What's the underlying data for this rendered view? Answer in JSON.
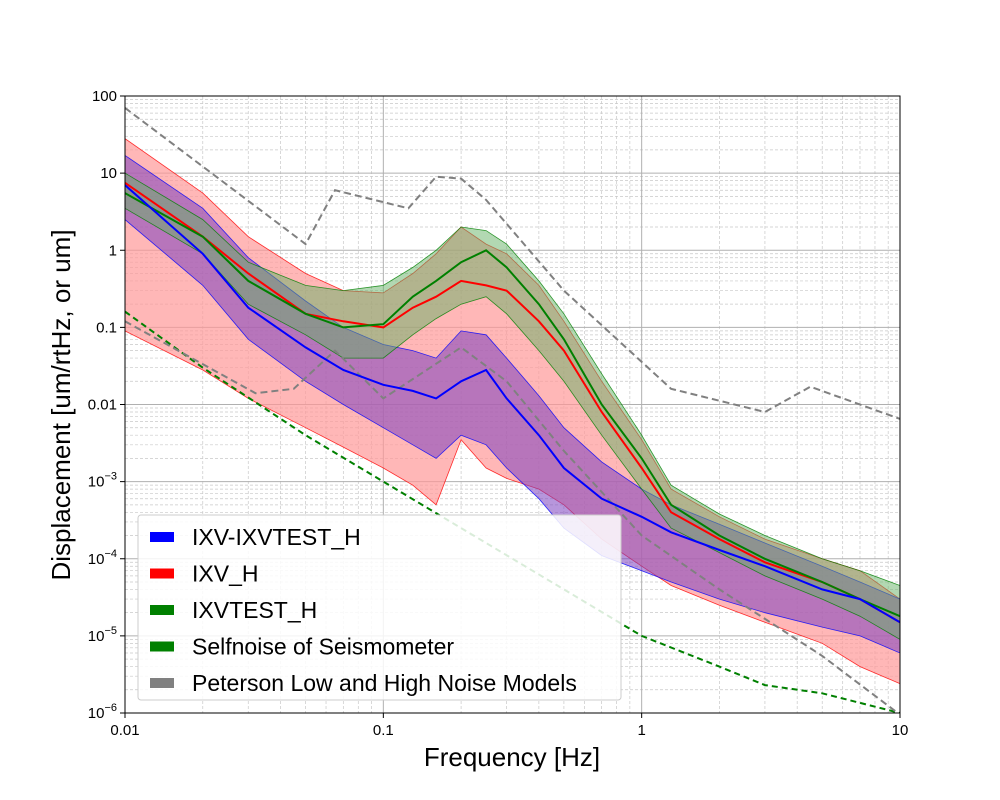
{
  "chart_data": {
    "type": "line",
    "xlabel": "Frequency [Hz]",
    "ylabel": "Displacement [um/rtHz, or um]",
    "x_scale": "log",
    "y_scale": "log",
    "xlim": [
      0.01,
      10
    ],
    "ylim": [
      1e-06,
      100
    ],
    "grid": "on (major and minor)",
    "legend_placement": "bottom-left",
    "x_ticks": [
      {
        "value": 0.01,
        "label": "0.01"
      },
      {
        "value": 0.1,
        "label": "0.1"
      },
      {
        "value": 1,
        "label": "1"
      },
      {
        "value": 10,
        "label": "10"
      }
    ],
    "y_ticks": [
      {
        "value": 100,
        "base": "100",
        "exp": ""
      },
      {
        "value": 10,
        "base": "10",
        "exp": ""
      },
      {
        "value": 1,
        "base": "1",
        "exp": ""
      },
      {
        "value": 0.1,
        "base": "0.1",
        "exp": ""
      },
      {
        "value": 0.01,
        "base": "0.01",
        "exp": ""
      },
      {
        "value": 0.001,
        "base": "10",
        "exp": "−3"
      },
      {
        "value": 0.0001,
        "base": "10",
        "exp": "−4"
      },
      {
        "value": 1e-05,
        "base": "10",
        "exp": "−5"
      },
      {
        "value": 1e-06,
        "base": "10",
        "exp": "−6"
      }
    ],
    "series": [
      {
        "name": "IXV_H",
        "color": "#ff0000",
        "band_color": "#ff9999",
        "x": [
          0.01,
          0.02,
          0.03,
          0.05,
          0.07,
          0.1,
          0.13,
          0.16,
          0.2,
          0.25,
          0.3,
          0.4,
          0.5,
          0.7,
          1.0,
          1.3,
          2.0,
          3.0,
          5.0,
          7.0,
          10.0
        ],
        "median": [
          7.5,
          1.5,
          0.5,
          0.15,
          0.12,
          0.1,
          0.18,
          0.25,
          0.4,
          0.35,
          0.3,
          0.12,
          0.05,
          0.008,
          0.0015,
          0.0004,
          0.00018,
          9e-05,
          5e-05,
          3e-05,
          1.5e-05
        ],
        "upper": [
          28,
          5.5,
          1.5,
          0.5,
          0.3,
          0.28,
          0.5,
          0.9,
          2.0,
          1.2,
          0.9,
          0.35,
          0.12,
          0.02,
          0.0035,
          0.0008,
          0.00035,
          0.00018,
          0.0001,
          7e-05,
          3e-05
        ],
        "lower": [
          0.09,
          0.028,
          0.012,
          0.005,
          0.0028,
          0.0015,
          0.0009,
          0.0005,
          0.0035,
          0.0015,
          0.0011,
          0.0008,
          0.0005,
          0.00018,
          8e-05,
          4.5e-05,
          2.5e-05,
          1.5e-05,
          8e-06,
          4e-06,
          2.4e-06
        ]
      },
      {
        "name": "IXV-IXVTEST_H",
        "color": "#0000ff",
        "band_color": "#7b3fbf",
        "x": [
          0.01,
          0.02,
          0.03,
          0.05,
          0.07,
          0.1,
          0.13,
          0.16,
          0.2,
          0.25,
          0.3,
          0.4,
          0.5,
          0.7,
          1.0,
          1.3,
          2.0,
          3.0,
          5.0,
          7.0,
          10.0
        ],
        "median": [
          7.0,
          0.9,
          0.18,
          0.055,
          0.028,
          0.018,
          0.015,
          0.012,
          0.02,
          0.028,
          0.012,
          0.004,
          0.0015,
          0.0006,
          0.00035,
          0.00022,
          0.00013,
          8e-05,
          4e-05,
          3e-05,
          1.5e-05
        ],
        "upper": [
          17,
          3.5,
          0.8,
          0.22,
          0.1,
          0.06,
          0.05,
          0.04,
          0.09,
          0.08,
          0.04,
          0.013,
          0.005,
          0.0018,
          0.0008,
          0.0005,
          0.00028,
          0.00016,
          8e-05,
          5e-05,
          3e-05
        ],
        "lower": [
          2.5,
          0.35,
          0.07,
          0.02,
          0.01,
          0.005,
          0.003,
          0.002,
          0.004,
          0.003,
          0.0015,
          0.0006,
          0.00025,
          0.00011,
          7e-05,
          5e-05,
          3e-05,
          2e-05,
          1.3e-05,
          1e-05,
          6e-06
        ]
      },
      {
        "name": "IXVTEST_H",
        "color": "#008000",
        "band_color": "#66b266",
        "x": [
          0.01,
          0.02,
          0.03,
          0.05,
          0.07,
          0.1,
          0.13,
          0.16,
          0.2,
          0.25,
          0.3,
          0.4,
          0.5,
          0.7,
          1.0,
          1.3,
          2.0,
          3.0,
          5.0,
          7.0,
          10.0
        ],
        "median": [
          5.5,
          1.5,
          0.4,
          0.15,
          0.1,
          0.11,
          0.25,
          0.4,
          0.7,
          1.0,
          0.6,
          0.2,
          0.07,
          0.01,
          0.002,
          0.0005,
          0.0002,
          0.0001,
          5e-05,
          3e-05,
          1.8e-05
        ],
        "upper": [
          10,
          2.5,
          0.7,
          0.35,
          0.3,
          0.35,
          0.6,
          1.0,
          2.0,
          1.8,
          1.2,
          0.4,
          0.15,
          0.025,
          0.004,
          0.0009,
          0.00038,
          0.0002,
          0.0001,
          7e-05,
          4.5e-05
        ],
        "lower": [
          3.5,
          0.9,
          0.2,
          0.08,
          0.04,
          0.04,
          0.08,
          0.13,
          0.2,
          0.25,
          0.15,
          0.05,
          0.02,
          0.004,
          0.0008,
          0.00025,
          0.00012,
          6e-05,
          3e-05,
          1.8e-05,
          9e-06
        ]
      },
      {
        "name": "Selfnoise of Seismometer",
        "color": "#008000",
        "style": "dashed",
        "x": [
          0.01,
          0.02,
          0.05,
          0.1,
          0.2,
          0.5,
          1.0,
          2.0,
          3.0,
          5.0,
          10.0
        ],
        "values": [
          0.16,
          0.03,
          0.004,
          0.001,
          0.00025,
          4e-05,
          1e-05,
          4e-06,
          2.3e-06,
          1.8e-06,
          1e-06
        ]
      },
      {
        "name": "Peterson Low and High Noise Models",
        "color": "#808080",
        "style": "dashed",
        "curves": [
          {
            "label": "high",
            "x": [
              0.01,
              0.05,
              0.065,
              0.125,
              0.16,
              0.2,
              0.25,
              0.5,
              1.3,
              3.0,
              4.5,
              10.0
            ],
            "values": [
              70,
              1.2,
              6,
              3.5,
              9,
              8.5,
              4.5,
              0.3,
              0.016,
              0.008,
              0.017,
              0.0065
            ]
          },
          {
            "label": "low",
            "x": [
              0.01,
              0.032,
              0.045,
              0.065,
              0.1,
              0.2,
              0.3,
              0.5,
              1.0,
              2.0,
              5.0,
              10.0
            ],
            "values": [
              0.12,
              0.014,
              0.016,
              0.05,
              0.012,
              0.055,
              0.02,
              0.0025,
              0.0002,
              4e-05,
              5.5e-06,
              9.5e-07
            ]
          }
        ]
      }
    ],
    "legend": [
      {
        "label": "IXV-IXVTEST_H",
        "color": "#0000ff"
      },
      {
        "label": "IXV_H",
        "color": "#ff0000"
      },
      {
        "label": "IXVTEST_H",
        "color": "#008000"
      },
      {
        "label": "Selfnoise of Seismometer",
        "color": "#008000"
      },
      {
        "label": "Peterson Low and High Noise Models",
        "color": "#808080"
      }
    ]
  }
}
